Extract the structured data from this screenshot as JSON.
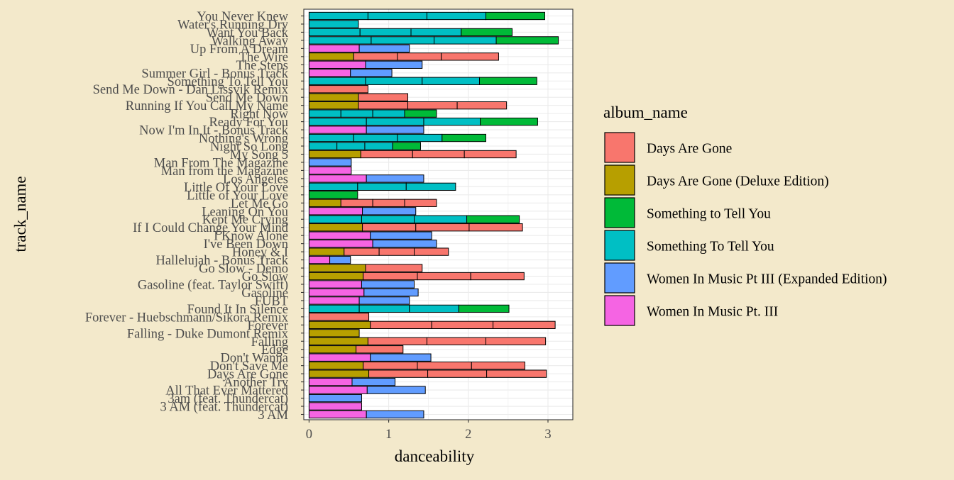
{
  "chart_data": {
    "type": "bar",
    "stacked": true,
    "orientation": "horizontal",
    "title": "",
    "xlabel": "danceability",
    "ylabel": "track_name",
    "xlim": [
      -0.05,
      3.3
    ],
    "xticks": [
      0,
      1,
      2,
      3
    ],
    "grid": true,
    "legend_title": "album_name",
    "legend_position": "right",
    "albums": [
      {
        "name": "Days Are Gone",
        "color": "#F8766D"
      },
      {
        "name": "Days Are Gone (Deluxe Edition)",
        "color": "#B79F00"
      },
      {
        "name": "Something to Tell You",
        "color": "#00BA38"
      },
      {
        "name": "Something To Tell You",
        "color": "#00BFC4"
      },
      {
        "name": "Women In Music Pt III (Expanded Edition)",
        "color": "#619CFF"
      },
      {
        "name": "Women In Music Pt. III",
        "color": "#F564E3"
      }
    ],
    "tracks": [
      {
        "name": "You Never Knew",
        "segments": [
          {
            "album": "Something To Tell You",
            "values": [
              0.74,
              0.74,
              0.74
            ]
          },
          {
            "album": "Something to Tell You",
            "values": [
              0.74
            ]
          }
        ]
      },
      {
        "name": "Water's Running Dry",
        "segments": [
          {
            "album": "Something To Tell You",
            "values": [
              0.62
            ]
          }
        ]
      },
      {
        "name": "Want You Back",
        "segments": [
          {
            "album": "Something To Tell You",
            "values": [
              0.64,
              0.64,
              0.63
            ]
          },
          {
            "album": "Something to Tell You",
            "values": [
              0.64
            ]
          }
        ]
      },
      {
        "name": "Walking Away",
        "segments": [
          {
            "album": "Something To Tell You",
            "values": [
              0.78,
              0.79,
              0.78
            ]
          },
          {
            "album": "Something to Tell You",
            "values": [
              0.78
            ]
          }
        ]
      },
      {
        "name": "Up From A Dream",
        "segments": [
          {
            "album": "Women In Music Pt. III",
            "values": [
              0.63
            ]
          },
          {
            "album": "Women In Music Pt III (Expanded Edition)",
            "values": [
              0.63
            ]
          }
        ]
      },
      {
        "name": "The Wire",
        "segments": [
          {
            "album": "Days Are Gone (Deluxe Edition)",
            "values": [
              0.56
            ]
          },
          {
            "album": "Days Are Gone",
            "values": [
              0.55,
              0.55,
              0.72
            ]
          }
        ]
      },
      {
        "name": "The Steps",
        "segments": [
          {
            "album": "Women In Music Pt. III",
            "values": [
              0.71
            ]
          },
          {
            "album": "Women In Music Pt III (Expanded Edition)",
            "values": [
              0.71
            ]
          }
        ]
      },
      {
        "name": "Summer Girl - Bonus Track",
        "segments": [
          {
            "album": "Women In Music Pt. III",
            "values": [
              0.52
            ]
          },
          {
            "album": "Women In Music Pt III (Expanded Edition)",
            "values": [
              0.52
            ]
          }
        ]
      },
      {
        "name": "Something To Tell You",
        "segments": [
          {
            "album": "Something To Tell You",
            "values": [
              0.71,
              0.71,
              0.72
            ]
          },
          {
            "album": "Something to Tell You",
            "values": [
              0.72
            ]
          }
        ]
      },
      {
        "name": "Send Me Down - Dan Lissvik Remix",
        "segments": [
          {
            "album": "Days Are Gone",
            "values": [
              0.74
            ]
          }
        ]
      },
      {
        "name": "Send Me Down",
        "segments": [
          {
            "album": "Days Are Gone (Deluxe Edition)",
            "values": [
              0.62
            ]
          },
          {
            "album": "Days Are Gone",
            "values": [
              0.62
            ]
          }
        ]
      },
      {
        "name": "Running If You Call My Name",
        "segments": [
          {
            "album": "Days Are Gone (Deluxe Edition)",
            "values": [
              0.62
            ]
          },
          {
            "album": "Days Are Gone",
            "values": [
              0.62,
              0.62,
              0.62
            ]
          }
        ]
      },
      {
        "name": "Right Now",
        "segments": [
          {
            "album": "Something To Tell You",
            "values": [
              0.4,
              0.4,
              0.4
            ]
          },
          {
            "album": "Something to Tell You",
            "values": [
              0.4
            ]
          }
        ]
      },
      {
        "name": "Ready For You",
        "segments": [
          {
            "album": "Something To Tell You",
            "values": [
              0.72,
              0.72,
              0.71
            ]
          },
          {
            "album": "Something to Tell You",
            "values": [
              0.72
            ]
          }
        ]
      },
      {
        "name": "Now I'm In It - Bonus Track",
        "segments": [
          {
            "album": "Women In Music Pt. III",
            "values": [
              0.72
            ]
          },
          {
            "album": "Women In Music Pt III (Expanded Edition)",
            "values": [
              0.72
            ]
          }
        ]
      },
      {
        "name": "Nothing's Wrong",
        "segments": [
          {
            "album": "Something To Tell You",
            "values": [
              0.56,
              0.55,
              0.56
            ]
          },
          {
            "album": "Something to Tell You",
            "values": [
              0.55
            ]
          }
        ]
      },
      {
        "name": "Night So Long",
        "segments": [
          {
            "album": "Something To Tell You",
            "values": [
              0.35,
              0.35,
              0.35
            ]
          },
          {
            "album": "Something to Tell You",
            "values": [
              0.35
            ]
          }
        ]
      },
      {
        "name": "My Song 5",
        "segments": [
          {
            "album": "Days Are Gone (Deluxe Edition)",
            "values": [
              0.65
            ]
          },
          {
            "album": "Days Are Gone",
            "values": [
              0.65,
              0.65,
              0.65
            ]
          }
        ]
      },
      {
        "name": "Man From The Magazine",
        "segments": [
          {
            "album": "Women In Music Pt III (Expanded Edition)",
            "values": [
              0.53
            ]
          }
        ]
      },
      {
        "name": "Man from the Magazine",
        "segments": [
          {
            "album": "Women In Music Pt. III",
            "values": [
              0.53
            ]
          }
        ]
      },
      {
        "name": "Los Angeles",
        "segments": [
          {
            "album": "Women In Music Pt. III",
            "values": [
              0.72
            ]
          },
          {
            "album": "Women In Music Pt III (Expanded Edition)",
            "values": [
              0.72
            ]
          }
        ]
      },
      {
        "name": "Little Of Your Love",
        "segments": [
          {
            "album": "Something To Tell You",
            "values": [
              0.61,
              0.61,
              0.62
            ]
          }
        ]
      },
      {
        "name": "Little of Your Love",
        "segments": [
          {
            "album": "Something to Tell You",
            "values": [
              0.61
            ]
          }
        ]
      },
      {
        "name": "Let Me Go",
        "segments": [
          {
            "album": "Days Are Gone (Deluxe Edition)",
            "values": [
              0.4
            ]
          },
          {
            "album": "Days Are Gone",
            "values": [
              0.4,
              0.4,
              0.4
            ]
          }
        ]
      },
      {
        "name": "Leaning On You",
        "segments": [
          {
            "album": "Women In Music Pt. III",
            "values": [
              0.67
            ]
          },
          {
            "album": "Women In Music Pt III (Expanded Edition)",
            "values": [
              0.67
            ]
          }
        ]
      },
      {
        "name": "Kept Me Crying",
        "segments": [
          {
            "album": "Something To Tell You",
            "values": [
              0.66,
              0.66,
              0.66
            ]
          },
          {
            "album": "Something to Tell You",
            "values": [
              0.66
            ]
          }
        ]
      },
      {
        "name": "If I Could Change Your Mind",
        "segments": [
          {
            "album": "Days Are Gone (Deluxe Edition)",
            "values": [
              0.67
            ]
          },
          {
            "album": "Days Are Gone",
            "values": [
              0.67,
              0.67,
              0.67
            ]
          }
        ]
      },
      {
        "name": "I Know Alone",
        "segments": [
          {
            "album": "Women In Music Pt. III",
            "values": [
              0.77
            ]
          },
          {
            "album": "Women In Music Pt III (Expanded Edition)",
            "values": [
              0.77
            ]
          }
        ]
      },
      {
        "name": "I've Been Down",
        "segments": [
          {
            "album": "Women In Music Pt. III",
            "values": [
              0.8
            ]
          },
          {
            "album": "Women In Music Pt III (Expanded Edition)",
            "values": [
              0.8
            ]
          }
        ]
      },
      {
        "name": "Honey & I",
        "segments": [
          {
            "album": "Days Are Gone (Deluxe Edition)",
            "values": [
              0.44
            ]
          },
          {
            "album": "Days Are Gone",
            "values": [
              0.44,
              0.44,
              0.43
            ]
          }
        ]
      },
      {
        "name": "Hallelujah - Bonus Track",
        "segments": [
          {
            "album": "Women In Music Pt. III",
            "values": [
              0.26
            ]
          },
          {
            "album": "Women In Music Pt III (Expanded Edition)",
            "values": [
              0.26
            ]
          }
        ]
      },
      {
        "name": "Go Slow - Demo",
        "segments": [
          {
            "album": "Days Are Gone (Deluxe Edition)",
            "values": [
              0.71
            ]
          },
          {
            "album": "Days Are Gone",
            "values": [
              0.71
            ]
          }
        ]
      },
      {
        "name": "Go Slow",
        "segments": [
          {
            "album": "Days Are Gone (Deluxe Edition)",
            "values": [
              0.68
            ]
          },
          {
            "album": "Days Are Gone",
            "values": [
              0.68,
              0.67,
              0.67
            ]
          }
        ]
      },
      {
        "name": "Gasoline (feat. Taylor Swift)",
        "segments": [
          {
            "album": "Women In Music Pt. III",
            "values": [
              0.66
            ]
          },
          {
            "album": "Women In Music Pt III (Expanded Edition)",
            "values": [
              0.66
            ]
          }
        ]
      },
      {
        "name": "Gasoline",
        "segments": [
          {
            "album": "Women In Music Pt. III",
            "values": [
              0.69
            ]
          },
          {
            "album": "Women In Music Pt III (Expanded Edition)",
            "values": [
              0.68
            ]
          }
        ]
      },
      {
        "name": "FUBT",
        "segments": [
          {
            "album": "Women In Music Pt. III",
            "values": [
              0.63
            ]
          },
          {
            "album": "Women In Music Pt III (Expanded Edition)",
            "values": [
              0.63
            ]
          }
        ]
      },
      {
        "name": "Found It In Silence",
        "segments": [
          {
            "album": "Something To Tell You",
            "values": [
              0.63,
              0.63,
              0.62
            ]
          },
          {
            "album": "Something to Tell You",
            "values": [
              0.63
            ]
          }
        ]
      },
      {
        "name": "Forever - Huebschmann/Sikora Remix",
        "segments": [
          {
            "album": "Days Are Gone",
            "values": [
              0.75
            ]
          }
        ]
      },
      {
        "name": "Forever",
        "segments": [
          {
            "album": "Days Are Gone (Deluxe Edition)",
            "values": [
              0.77
            ]
          },
          {
            "album": "Days Are Gone",
            "values": [
              0.77,
              0.77,
              0.78
            ]
          }
        ]
      },
      {
        "name": "Falling - Duke Dumont Remix",
        "segments": [
          {
            "album": "Days Are Gone (Deluxe Edition)",
            "values": [
              0.63
            ]
          }
        ]
      },
      {
        "name": "Falling",
        "segments": [
          {
            "album": "Days Are Gone (Deluxe Edition)",
            "values": [
              0.74
            ]
          },
          {
            "album": "Days Are Gone",
            "values": [
              0.74,
              0.74,
              0.75
            ]
          }
        ]
      },
      {
        "name": "Edge",
        "segments": [
          {
            "album": "Days Are Gone (Deluxe Edition)",
            "values": [
              0.59
            ]
          },
          {
            "album": "Days Are Gone",
            "values": [
              0.59
            ]
          }
        ]
      },
      {
        "name": "Don't Wanna",
        "segments": [
          {
            "album": "Women In Music Pt. III",
            "values": [
              0.77
            ]
          },
          {
            "album": "Women In Music Pt III (Expanded Edition)",
            "values": [
              0.76
            ]
          }
        ]
      },
      {
        "name": "Don't Save Me",
        "segments": [
          {
            "album": "Days Are Gone (Deluxe Edition)",
            "values": [
              0.68
            ]
          },
          {
            "album": "Days Are Gone",
            "values": [
              0.68,
              0.68,
              0.67
            ]
          }
        ]
      },
      {
        "name": "Days Are Gone",
        "segments": [
          {
            "album": "Days Are Gone (Deluxe Edition)",
            "values": [
              0.75
            ]
          },
          {
            "album": "Days Are Gone",
            "values": [
              0.74,
              0.74,
              0.75
            ]
          }
        ]
      },
      {
        "name": "Another Try",
        "segments": [
          {
            "album": "Women In Music Pt. III",
            "values": [
              0.54
            ]
          },
          {
            "album": "Women In Music Pt III (Expanded Edition)",
            "values": [
              0.54
            ]
          }
        ]
      },
      {
        "name": "All That Ever Mattered",
        "segments": [
          {
            "album": "Women In Music Pt. III",
            "values": [
              0.73
            ]
          },
          {
            "album": "Women In Music Pt III (Expanded Edition)",
            "values": [
              0.73
            ]
          }
        ]
      },
      {
        "name": "3am (feat. Thundercat)",
        "segments": [
          {
            "album": "Women In Music Pt III (Expanded Edition)",
            "values": [
              0.66
            ]
          }
        ]
      },
      {
        "name": "3 AM (feat. Thundercat)",
        "segments": [
          {
            "album": "Women In Music Pt. III",
            "values": [
              0.66
            ]
          }
        ]
      },
      {
        "name": "3 AM",
        "segments": [
          {
            "album": "Women In Music Pt. III",
            "values": [
              0.72
            ]
          },
          {
            "album": "Women In Music Pt III (Expanded Edition)",
            "values": [
              0.72
            ]
          }
        ]
      }
    ]
  }
}
